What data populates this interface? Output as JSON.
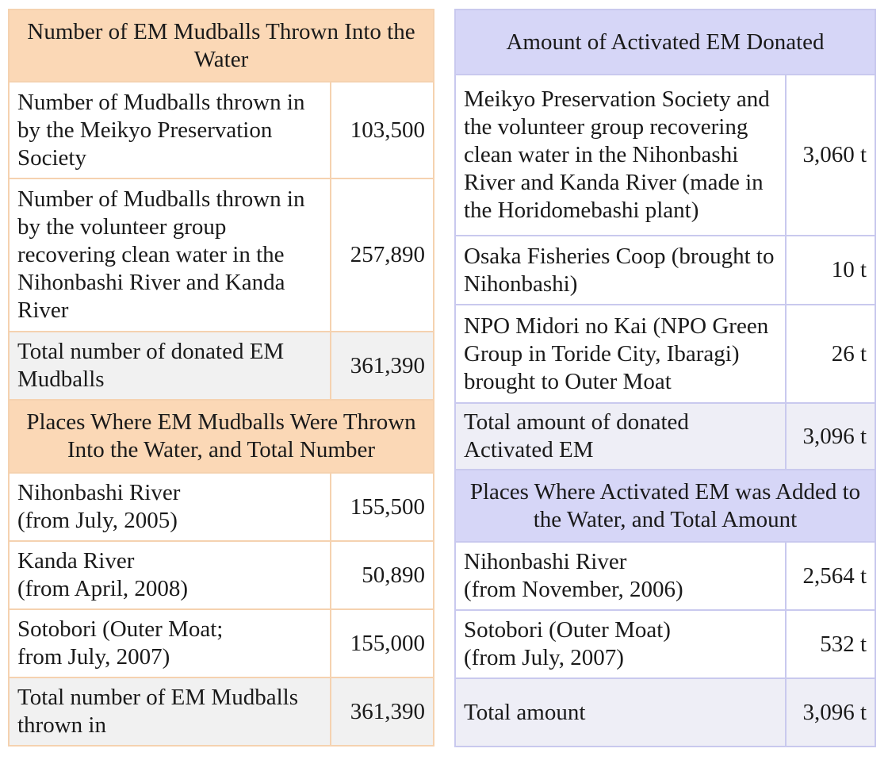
{
  "left": {
    "header1": "Number of EM Mudballs Thrown Into the Water",
    "rows1": [
      {
        "label": "Number of Mudballs thrown in by the Meikyo Preservation Society",
        "value": "103,500"
      },
      {
        "label": "Number of Mudballs thrown in by the volunteer group recovering clean water in the Nihonbashi River and Kanda River",
        "value": "257,890"
      }
    ],
    "total1": {
      "label": "Total number of donated EM Mudballs",
      "value": "361,390"
    },
    "header2": "Places Where EM Mudballs Were Thrown Into the Water, and Total Number",
    "rows2": [
      {
        "line1": "Nihonbashi River",
        "line2": "(from July, 2005)",
        "value": "155,500"
      },
      {
        "line1": "Kanda River",
        "line2": "(from April, 2008)",
        "value": "50,890"
      },
      {
        "line1": "Sotobori (Outer Moat;",
        "line2": "from July, 2007)",
        "value": "155,000"
      }
    ],
    "total2": {
      "label": "Total number of EM Mudballs thrown in",
      "value": "361,390"
    }
  },
  "right": {
    "header1": "Amount of Activated EM Donated",
    "rows1": [
      {
        "label": "Meikyo Preservation Society and the volunteer group recovering clean water in the Nihonbashi River and Kanda River (made in the Horidomebashi plant)",
        "value": "3,060 t"
      },
      {
        "label": "Osaka Fisheries Coop (brought to Nihonbashi)",
        "value": "10 t"
      },
      {
        "label": "NPO Midori no Kai (NPO Green Group in Toride City, Ibaragi) brought to Outer Moat",
        "value": "26 t"
      }
    ],
    "total1": {
      "label": "Total amount of donated Activated EM",
      "value": "3,096 t"
    },
    "header2": "Places Where Activated EM was Added to the Water, and Total Amount",
    "rows2": [
      {
        "line1": "Nihonbashi River",
        "line2": "(from November, 2006)",
        "value": "2,564 t"
      },
      {
        "line1": "Sotobori (Outer Moat)",
        "line2": "(from July, 2007)",
        "value": "532 t"
      }
    ],
    "total2": {
      "label": "Total amount",
      "value": "3,096 t"
    }
  }
}
